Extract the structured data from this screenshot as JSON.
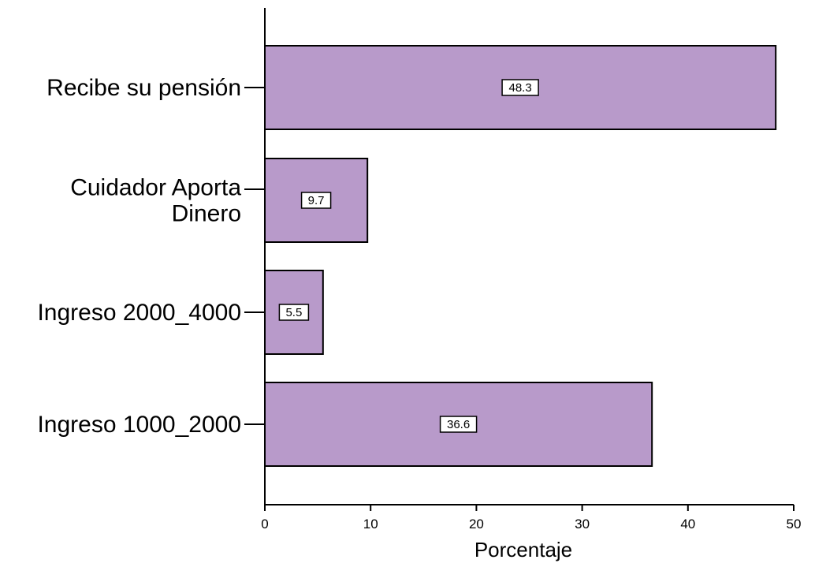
{
  "chart_data": {
    "type": "bar",
    "orientation": "horizontal",
    "categories": [
      [
        "Recibe su pensión"
      ],
      [
        "Cuidador Aporta",
        "Dinero"
      ],
      [
        "Ingreso 2000_4000"
      ],
      [
        "Ingreso 1000_2000"
      ]
    ],
    "values": [
      48.3,
      9.7,
      5.5,
      36.6
    ],
    "data_labels": [
      "48.3",
      "9.7",
      "5.5",
      "36.6"
    ],
    "title": "",
    "xlabel": "Porcentaje",
    "ylabel": "",
    "xlim": [
      0,
      50
    ],
    "xticks": [
      0,
      10,
      20,
      30,
      40,
      50
    ],
    "xtick_labels": [
      "0",
      "10",
      "20",
      "30",
      "40",
      "50"
    ],
    "grid": false,
    "legend": "none",
    "bar_color": "#b89aca",
    "bar_edge_color": "#000000"
  }
}
